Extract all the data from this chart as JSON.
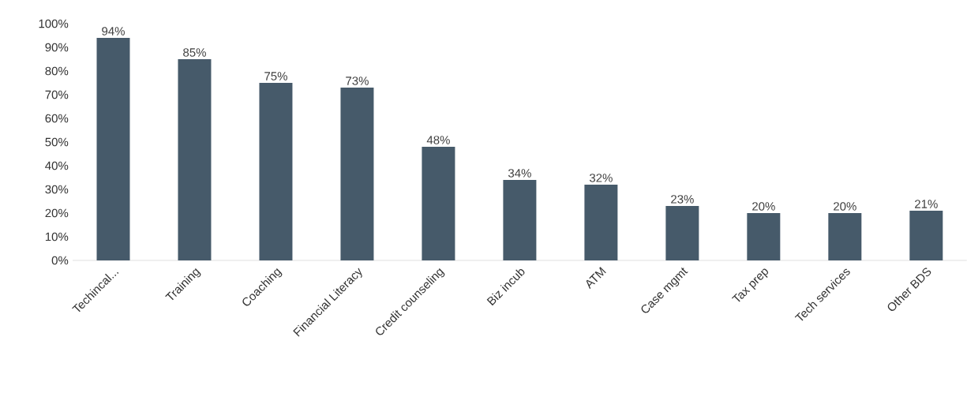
{
  "chart_data": {
    "type": "bar",
    "categories": [
      "Techincal...",
      "Training",
      "Coaching",
      "Financial Literacy",
      "Credit counseling",
      "Biz incub",
      "ATM",
      "Case mgmt",
      "Tax prep",
      "Tech services",
      "Other BDS"
    ],
    "values": [
      94,
      85,
      75,
      73,
      48,
      34,
      32,
      23,
      20,
      20,
      21
    ],
    "value_labels": [
      "94%",
      "85%",
      "75%",
      "73%",
      "48%",
      "34%",
      "32%",
      "23%",
      "20%",
      "20%",
      "21%"
    ],
    "color": "#465a6a",
    "ylim": [
      0,
      100
    ],
    "yticks": [
      {
        "value": 0,
        "label": "0%"
      },
      {
        "value": 10,
        "label": "10%"
      },
      {
        "value": 20,
        "label": "20%"
      },
      {
        "value": 30,
        "label": "30%"
      },
      {
        "value": 40,
        "label": "40%"
      },
      {
        "value": 50,
        "label": "50%"
      },
      {
        "value": 60,
        "label": "60%"
      },
      {
        "value": 70,
        "label": "70%"
      },
      {
        "value": 80,
        "label": "80%"
      },
      {
        "value": 90,
        "label": "90%"
      },
      {
        "value": 100,
        "label": "100%"
      }
    ],
    "grid": false
  }
}
